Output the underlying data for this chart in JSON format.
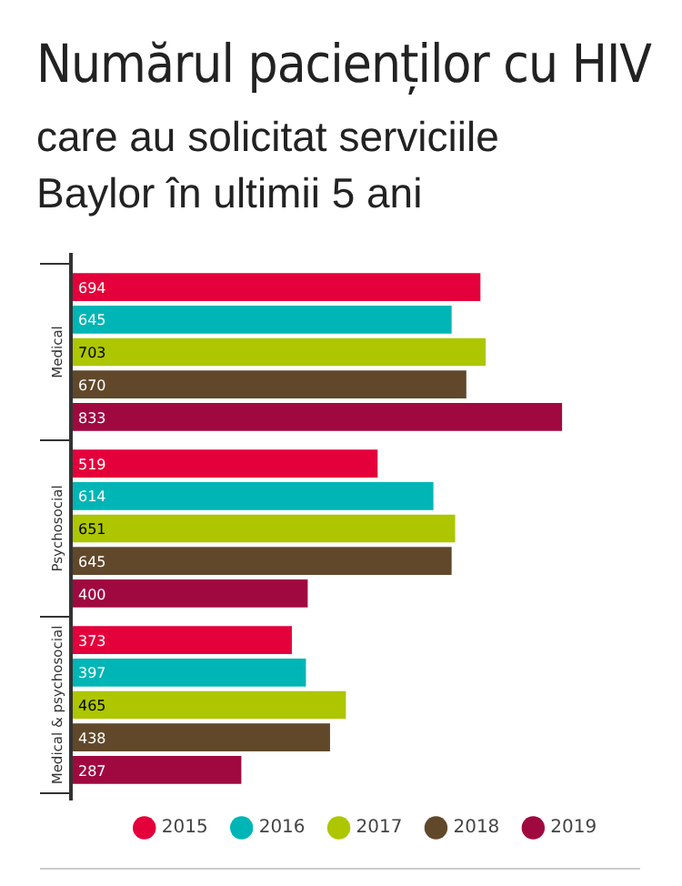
{
  "chart_data": {
    "type": "bar",
    "orientation": "horizontal",
    "title": "Numărul pacienților cu HIV",
    "subtitle": "care au solicitat serviciile Baylor în ultimii 5 ani",
    "categories": [
      "Medical",
      "Psychosocial",
      "Medical & psychosocial"
    ],
    "series": [
      {
        "name": "2015",
        "color": "#e4003b",
        "values": [
          694,
          519,
          373
        ]
      },
      {
        "name": "2016",
        "color": "#00b5b6",
        "values": [
          645,
          614,
          397
        ]
      },
      {
        "name": "2017",
        "color": "#adc600",
        "values": [
          703,
          651,
          465
        ]
      },
      {
        "name": "2018",
        "color": "#61482a",
        "values": [
          670,
          645,
          438
        ]
      },
      {
        "name": "2019",
        "color": "#a00940",
        "values": [
          833,
          400,
          287
        ]
      }
    ],
    "data_labels": true,
    "legend": "bottom"
  }
}
